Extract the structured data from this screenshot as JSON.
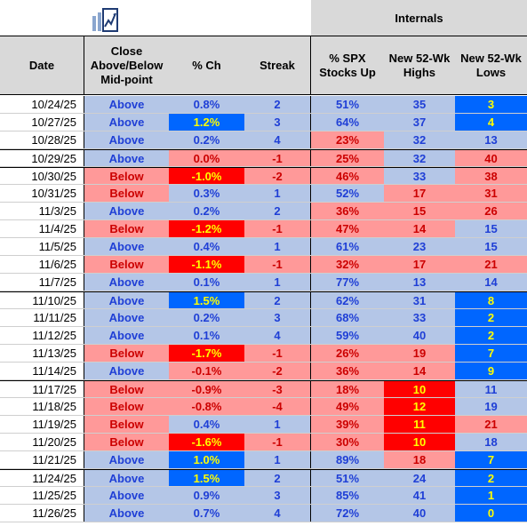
{
  "header": {
    "internals": "Internals",
    "columns": [
      "Date",
      "Close Above/Below Mid-point",
      "% Ch",
      "Streak",
      "% SPX Stocks Up",
      "New 52-Wk Highs",
      "New 52-Wk Lows"
    ],
    "col2_lines": [
      "Close",
      "Above/Below",
      "Mid-point"
    ],
    "col5_lines": [
      "% SPX",
      "Stocks Up"
    ],
    "col6_lines": [
      "New 52-Wk",
      "Highs"
    ],
    "col7_lines": [
      "New 52-Wk",
      "Lows"
    ]
  },
  "colors": {
    "light_blue": "#b4c6e7",
    "pink": "#ff9999",
    "red": "#ff0000",
    "blue": "#0066ff",
    "yellow_text": "#ffff00",
    "header_gray": "#d9d9d9"
  },
  "rows": [
    {
      "date": "10/24/25",
      "close": "Above",
      "pct": "0.8%",
      "streak": "2",
      "spx": "51%",
      "highs": "35",
      "lows": "3"
    },
    {
      "date": "10/27/25",
      "close": "Above",
      "pct": "1.2%",
      "streak": "3",
      "spx": "64%",
      "highs": "37",
      "lows": "4"
    },
    {
      "date": "10/28/25",
      "close": "Above",
      "pct": "0.2%",
      "streak": "4",
      "spx": "23%",
      "highs": "32",
      "lows": "13"
    },
    {
      "date": "10/29/25",
      "close": "Above",
      "pct": "0.0%",
      "streak": "-1",
      "spx": "25%",
      "highs": "32",
      "lows": "40"
    },
    {
      "date": "10/30/25",
      "close": "Below",
      "pct": "-1.0%",
      "streak": "-2",
      "spx": "46%",
      "highs": "33",
      "lows": "38"
    },
    {
      "date": "10/31/25",
      "close": "Below",
      "pct": "0.3%",
      "streak": "1",
      "spx": "52%",
      "highs": "17",
      "lows": "31"
    },
    {
      "date": "11/3/25",
      "close": "Above",
      "pct": "0.2%",
      "streak": "2",
      "spx": "36%",
      "highs": "15",
      "lows": "26"
    },
    {
      "date": "11/4/25",
      "close": "Below",
      "pct": "-1.2%",
      "streak": "-1",
      "spx": "47%",
      "highs": "14",
      "lows": "15"
    },
    {
      "date": "11/5/25",
      "close": "Above",
      "pct": "0.4%",
      "streak": "1",
      "spx": "61%",
      "highs": "23",
      "lows": "15"
    },
    {
      "date": "11/6/25",
      "close": "Below",
      "pct": "-1.1%",
      "streak": "-1",
      "spx": "32%",
      "highs": "17",
      "lows": "21"
    },
    {
      "date": "11/7/25",
      "close": "Above",
      "pct": "0.1%",
      "streak": "1",
      "spx": "77%",
      "highs": "13",
      "lows": "14"
    },
    {
      "date": "11/10/25",
      "close": "Above",
      "pct": "1.5%",
      "streak": "2",
      "spx": "62%",
      "highs": "31",
      "lows": "8"
    },
    {
      "date": "11/11/25",
      "close": "Above",
      "pct": "0.2%",
      "streak": "3",
      "spx": "68%",
      "highs": "33",
      "lows": "2"
    },
    {
      "date": "11/12/25",
      "close": "Above",
      "pct": "0.1%",
      "streak": "4",
      "spx": "59%",
      "highs": "40",
      "lows": "2"
    },
    {
      "date": "11/13/25",
      "close": "Below",
      "pct": "-1.7%",
      "streak": "-1",
      "spx": "26%",
      "highs": "19",
      "lows": "7"
    },
    {
      "date": "11/14/25",
      "close": "Above",
      "pct": "-0.1%",
      "streak": "-2",
      "spx": "36%",
      "highs": "14",
      "lows": "9"
    },
    {
      "date": "11/17/25",
      "close": "Below",
      "pct": "-0.9%",
      "streak": "-3",
      "spx": "18%",
      "highs": "10",
      "lows": "11"
    },
    {
      "date": "11/18/25",
      "close": "Below",
      "pct": "-0.8%",
      "streak": "-4",
      "spx": "49%",
      "highs": "12",
      "lows": "19"
    },
    {
      "date": "11/19/25",
      "close": "Below",
      "pct": "0.4%",
      "streak": "1",
      "spx": "39%",
      "highs": "11",
      "lows": "21"
    },
    {
      "date": "11/20/25",
      "close": "Below",
      "pct": "-1.6%",
      "streak": "-1",
      "spx": "30%",
      "highs": "10",
      "lows": "18"
    },
    {
      "date": "11/21/25",
      "close": "Above",
      "pct": "1.0%",
      "streak": "1",
      "spx": "89%",
      "highs": "18",
      "lows": "7"
    },
    {
      "date": "11/24/25",
      "close": "Above",
      "pct": "1.5%",
      "streak": "2",
      "spx": "51%",
      "highs": "24",
      "lows": "2"
    },
    {
      "date": "11/25/25",
      "close": "Above",
      "pct": "0.9%",
      "streak": "3",
      "spx": "85%",
      "highs": "41",
      "lows": "1"
    },
    {
      "date": "11/26/25",
      "close": "Above",
      "pct": "0.7%",
      "streak": "4",
      "spx": "72%",
      "highs": "40",
      "lows": "0"
    }
  ]
}
